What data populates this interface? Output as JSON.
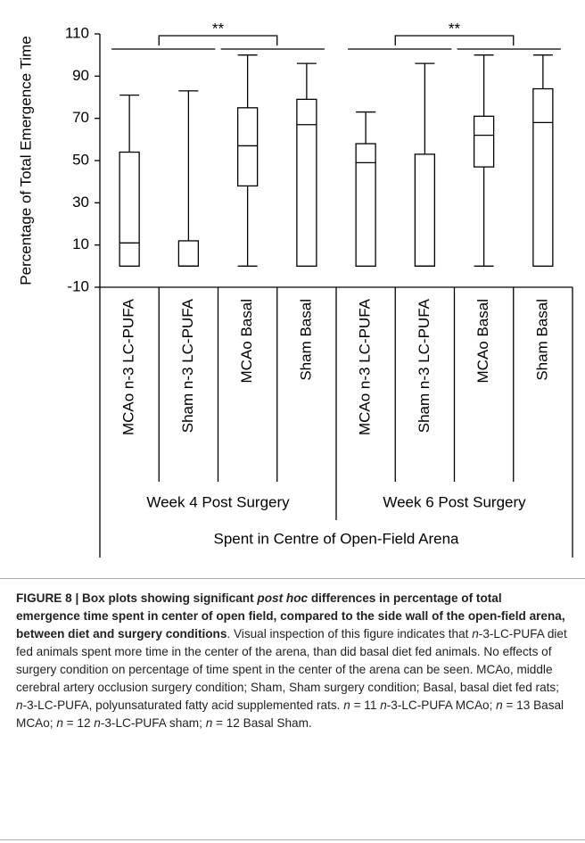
{
  "chart_data": {
    "type": "box",
    "y_label": "Percentage of Total Emergence Time",
    "categories": [
      "MCAo n-3 LC-PUFA",
      "Sham n-3 LC-PUFA",
      "MCAo Basal",
      "Sham Basal",
      "MCAo n-3 LC-PUFA",
      "Sham n-3 LC-PUFA",
      "MCAo Basal",
      "Sham Basal"
    ],
    "groups": [
      "Week 4 Post Surgery",
      "Week 6 Post Surgery"
    ],
    "group_title": "Spent in Centre of Open-Field Arena",
    "min": [
      0,
      0,
      0,
      0,
      0,
      0,
      0,
      0
    ],
    "q1": [
      0,
      0,
      38,
      0,
      0,
      0,
      47,
      0
    ],
    "median": [
      11,
      0,
      57,
      67,
      49,
      0,
      62,
      68
    ],
    "q3": [
      54,
      12,
      75,
      79,
      58,
      53,
      71,
      84
    ],
    "max": [
      81,
      83,
      100,
      96,
      73,
      96,
      100,
      100
    ],
    "significance": [
      "**",
      "**"
    ],
    "ylim": [
      -10,
      110
    ],
    "yticks": [
      -10,
      10,
      30,
      50,
      70,
      90,
      110
    ]
  },
  "caption": [
    "FIGURE 8 | Box plots showing significant ",
    "post hoc",
    " differences in percentage of total emergence time spent in center of open field, compared to the side wall of the open-field arena, between diet and surgery conditions",
    ". Visual inspection of this figure indicates that ",
    "n",
    "-3-LC-PUFA diet fed animals spent more time in the center of the arena, than did basal diet fed animals. No effects of surgery condition on percentage of time spent in the center of the arena can be seen. MCAo, middle cerebral artery occlusion surgery condition; Sham, Sham surgery condition; Basal, basal diet fed rats; ",
    "n",
    "-3-LC-PUFA, polyunsaturated fatty acid supplemented rats. ",
    "n",
    " = 11 ",
    "n",
    "-3-LC-PUFA MCAo; ",
    "n",
    " = 13 Basal MCAo; ",
    "n",
    " = 12 ",
    "n",
    "-3-LC-PUFA sham; ",
    "n",
    " = 12 Basal Sham."
  ]
}
